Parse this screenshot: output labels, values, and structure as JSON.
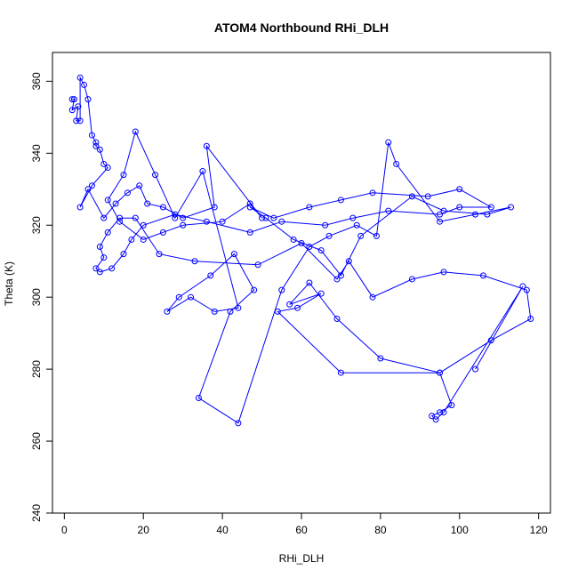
{
  "chart_data": {
    "type": "line",
    "title": "ATOM4 Northbound RHi_DLH",
    "xlabel": "RHi_DLH",
    "ylabel": "Theta (K)",
    "xlim": [
      -3,
      123
    ],
    "ylim": [
      240,
      368
    ],
    "xticks": [
      0,
      20,
      40,
      60,
      80,
      100,
      120
    ],
    "yticks": [
      240,
      260,
      280,
      300,
      320,
      340,
      360
    ],
    "grid": false,
    "legend": "none",
    "series_color": "#0000ff",
    "series": [
      {
        "x": [
          2,
          2.5,
          2,
          3.5,
          3,
          4,
          4,
          5,
          6,
          7,
          8,
          8,
          9,
          10,
          11,
          7,
          4,
          6,
          10,
          13,
          16,
          19,
          21,
          25,
          30,
          38,
          36,
          50,
          47,
          40,
          30,
          25,
          20,
          14,
          11,
          15,
          18,
          23,
          28,
          35,
          44,
          38,
          32,
          26,
          29,
          37,
          43,
          48,
          42,
          34,
          44,
          55,
          62,
          67,
          74,
          79,
          82,
          84,
          95,
          104,
          113,
          107,
          96,
          88,
          75,
          70,
          65,
          58,
          51,
          47,
          53,
          62,
          70,
          78,
          92,
          100,
          108,
          100,
          95,
          82,
          73,
          66,
          55,
          47,
          36,
          28,
          20,
          17,
          15,
          12,
          9,
          8,
          10,
          9,
          11,
          14,
          18,
          24,
          33,
          49,
          60,
          69,
          72,
          78,
          88,
          96,
          106,
          117,
          118,
          108,
          95,
          70,
          54,
          59,
          65,
          57,
          62,
          69,
          80,
          95,
          98,
          95,
          93,
          94,
          96,
          116,
          104
        ],
        "y": [
          355,
          355,
          352,
          353,
          349,
          349,
          361,
          359,
          355,
          345,
          343,
          342,
          341,
          337,
          336,
          331,
          325,
          330,
          322,
          326,
          329,
          331,
          326,
          325,
          322,
          325,
          342,
          322,
          326,
          321,
          320,
          318,
          316,
          321,
          327,
          334,
          346,
          334,
          322,
          335,
          297,
          296,
          300,
          296,
          300,
          306,
          312,
          302,
          296,
          272,
          265,
          302,
          314,
          317,
          320,
          317,
          343,
          337,
          321,
          323,
          325,
          323,
          324,
          328,
          317,
          306,
          313,
          316,
          322,
          325,
          322,
          325,
          327,
          329,
          328,
          330,
          325,
          325,
          323,
          324,
          322,
          320,
          321,
          318,
          321,
          323,
          320,
          316,
          312,
          308,
          307,
          308,
          311,
          314,
          318,
          322,
          322,
          312,
          310,
          309,
          315,
          305,
          310,
          300,
          305,
          307,
          306,
          302,
          294,
          288,
          279,
          279,
          296,
          297,
          301,
          298,
          304,
          294,
          283,
          279,
          270,
          268,
          267,
          266,
          268,
          303,
          280
        ]
      }
    ]
  }
}
